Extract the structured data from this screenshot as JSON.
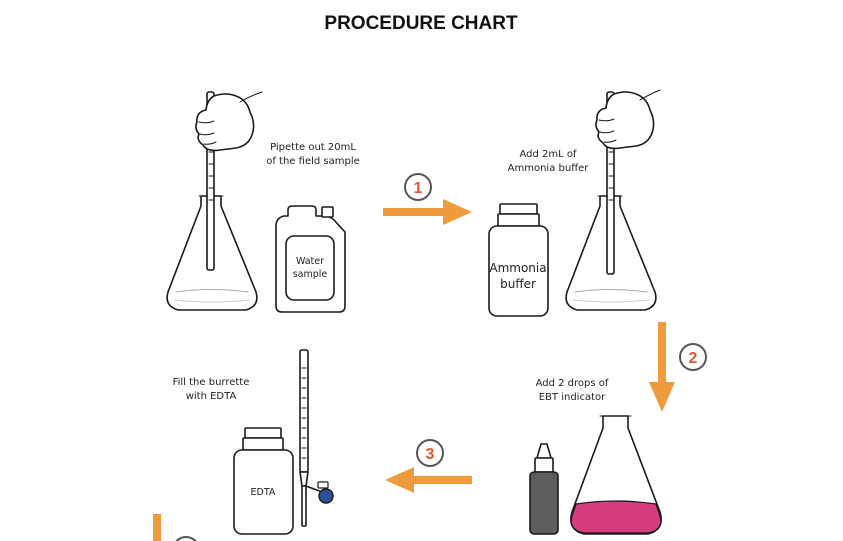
{
  "title": "PROCEDURE CHART",
  "steps": [
    {
      "number": "1",
      "caption_lines": [
        "Pipette out 20mL",
        "of the field sample"
      ]
    },
    {
      "number": "2",
      "caption_lines": [
        "Add 2mL of",
        "Ammonia buffer"
      ]
    },
    {
      "number": "3",
      "caption_lines": [
        "Add 2 drops of",
        "EBT indicator"
      ]
    }
  ],
  "fill_caption_lines": [
    "Fill the burrette",
    "with EDTA"
  ],
  "containers": {
    "water_sample": [
      "Water",
      "sample"
    ],
    "ammonia_buffer": [
      "Ammonia",
      "buffer"
    ],
    "edta": "EDTA"
  },
  "colors": {
    "arrow": "#ef9a3d",
    "step_number": "#e0582a",
    "indicator_solution": "#d63c7e",
    "dropper_body": "#5d5d5d",
    "burette_valve": "#2f4f9a"
  }
}
